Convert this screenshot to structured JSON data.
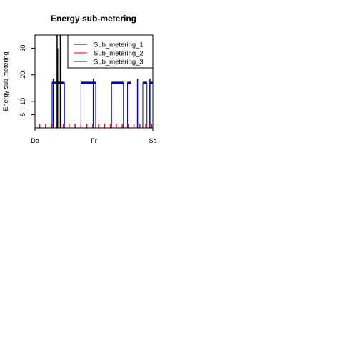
{
  "chart_data": {
    "type": "line",
    "title": "Energy sub-metering",
    "xlabel": "",
    "ylabel": "Energy sub metering",
    "xlim": [
      0,
      2
    ],
    "ylim": [
      0,
      35
    ],
    "x_ticks": [
      {
        "value": 0,
        "label": "Do"
      },
      {
        "value": 1,
        "label": "Fr"
      },
      {
        "value": 2,
        "label": "Sa"
      }
    ],
    "y_ticks": [
      {
        "value": 5,
        "label": "5"
      },
      {
        "value": 10,
        "label": "10"
      },
      {
        "value": 20,
        "label": "20"
      },
      {
        "value": 30,
        "label": "30"
      }
    ],
    "legend_position": "top-right",
    "series": [
      {
        "name": "Sub_metering_1",
        "color": "#000000",
        "style": "spikes",
        "base": 0,
        "spikes": [
          {
            "x": 0.375,
            "y": 35
          },
          {
            "x": 0.385,
            "y": 30
          },
          {
            "x": 0.43,
            "y": 35
          },
          {
            "x": 0.44,
            "y": 32
          }
        ]
      },
      {
        "name": "Sub_metering_2",
        "color": "#ff0000",
        "style": "spikes",
        "base": 0,
        "spikes": [
          {
            "x": 0.08,
            "y": 1.5
          },
          {
            "x": 0.18,
            "y": 1.5
          },
          {
            "x": 0.28,
            "y": 1.5
          },
          {
            "x": 0.38,
            "y": 1.5
          },
          {
            "x": 0.48,
            "y": 1.5
          },
          {
            "x": 0.58,
            "y": 1.5
          },
          {
            "x": 0.68,
            "y": 1.5
          },
          {
            "x": 0.78,
            "y": 1.5
          },
          {
            "x": 0.88,
            "y": 1.5
          },
          {
            "x": 0.98,
            "y": 1.5
          },
          {
            "x": 1.08,
            "y": 1.5
          },
          {
            "x": 1.18,
            "y": 1.5
          },
          {
            "x": 1.28,
            "y": 1.5
          },
          {
            "x": 1.38,
            "y": 1.5
          },
          {
            "x": 1.48,
            "y": 1.5
          },
          {
            "x": 1.58,
            "y": 1.5
          },
          {
            "x": 1.68,
            "y": 1.5
          },
          {
            "x": 1.78,
            "y": 1.5
          },
          {
            "x": 1.88,
            "y": 1.5
          },
          {
            "x": 1.98,
            "y": 1.5
          }
        ]
      },
      {
        "name": "Sub_metering_3",
        "color": "#0000cc",
        "style": "blocks",
        "base": 0,
        "blocks": [
          {
            "x_start": 0.29,
            "x_end": 0.5,
            "y": 17
          },
          {
            "x_start": 0.78,
            "x_end": 1.03,
            "y": 17
          },
          {
            "x_start": 1.3,
            "x_end": 1.5,
            "y": 17
          },
          {
            "x_start": 1.57,
            "x_end": 1.63,
            "y": 17
          },
          {
            "x_start": 1.83,
            "x_end": 1.9,
            "y": 17
          },
          {
            "x_start": 1.95,
            "x_end": 2.0,
            "y": 17
          }
        ],
        "pulses": [
          {
            "x": 0.31,
            "y": 18.5
          },
          {
            "x": 0.99,
            "y": 18.5
          },
          {
            "x": 1.74,
            "y": 18.5
          },
          {
            "x": 1.95,
            "y": 18.5
          }
        ]
      }
    ]
  }
}
